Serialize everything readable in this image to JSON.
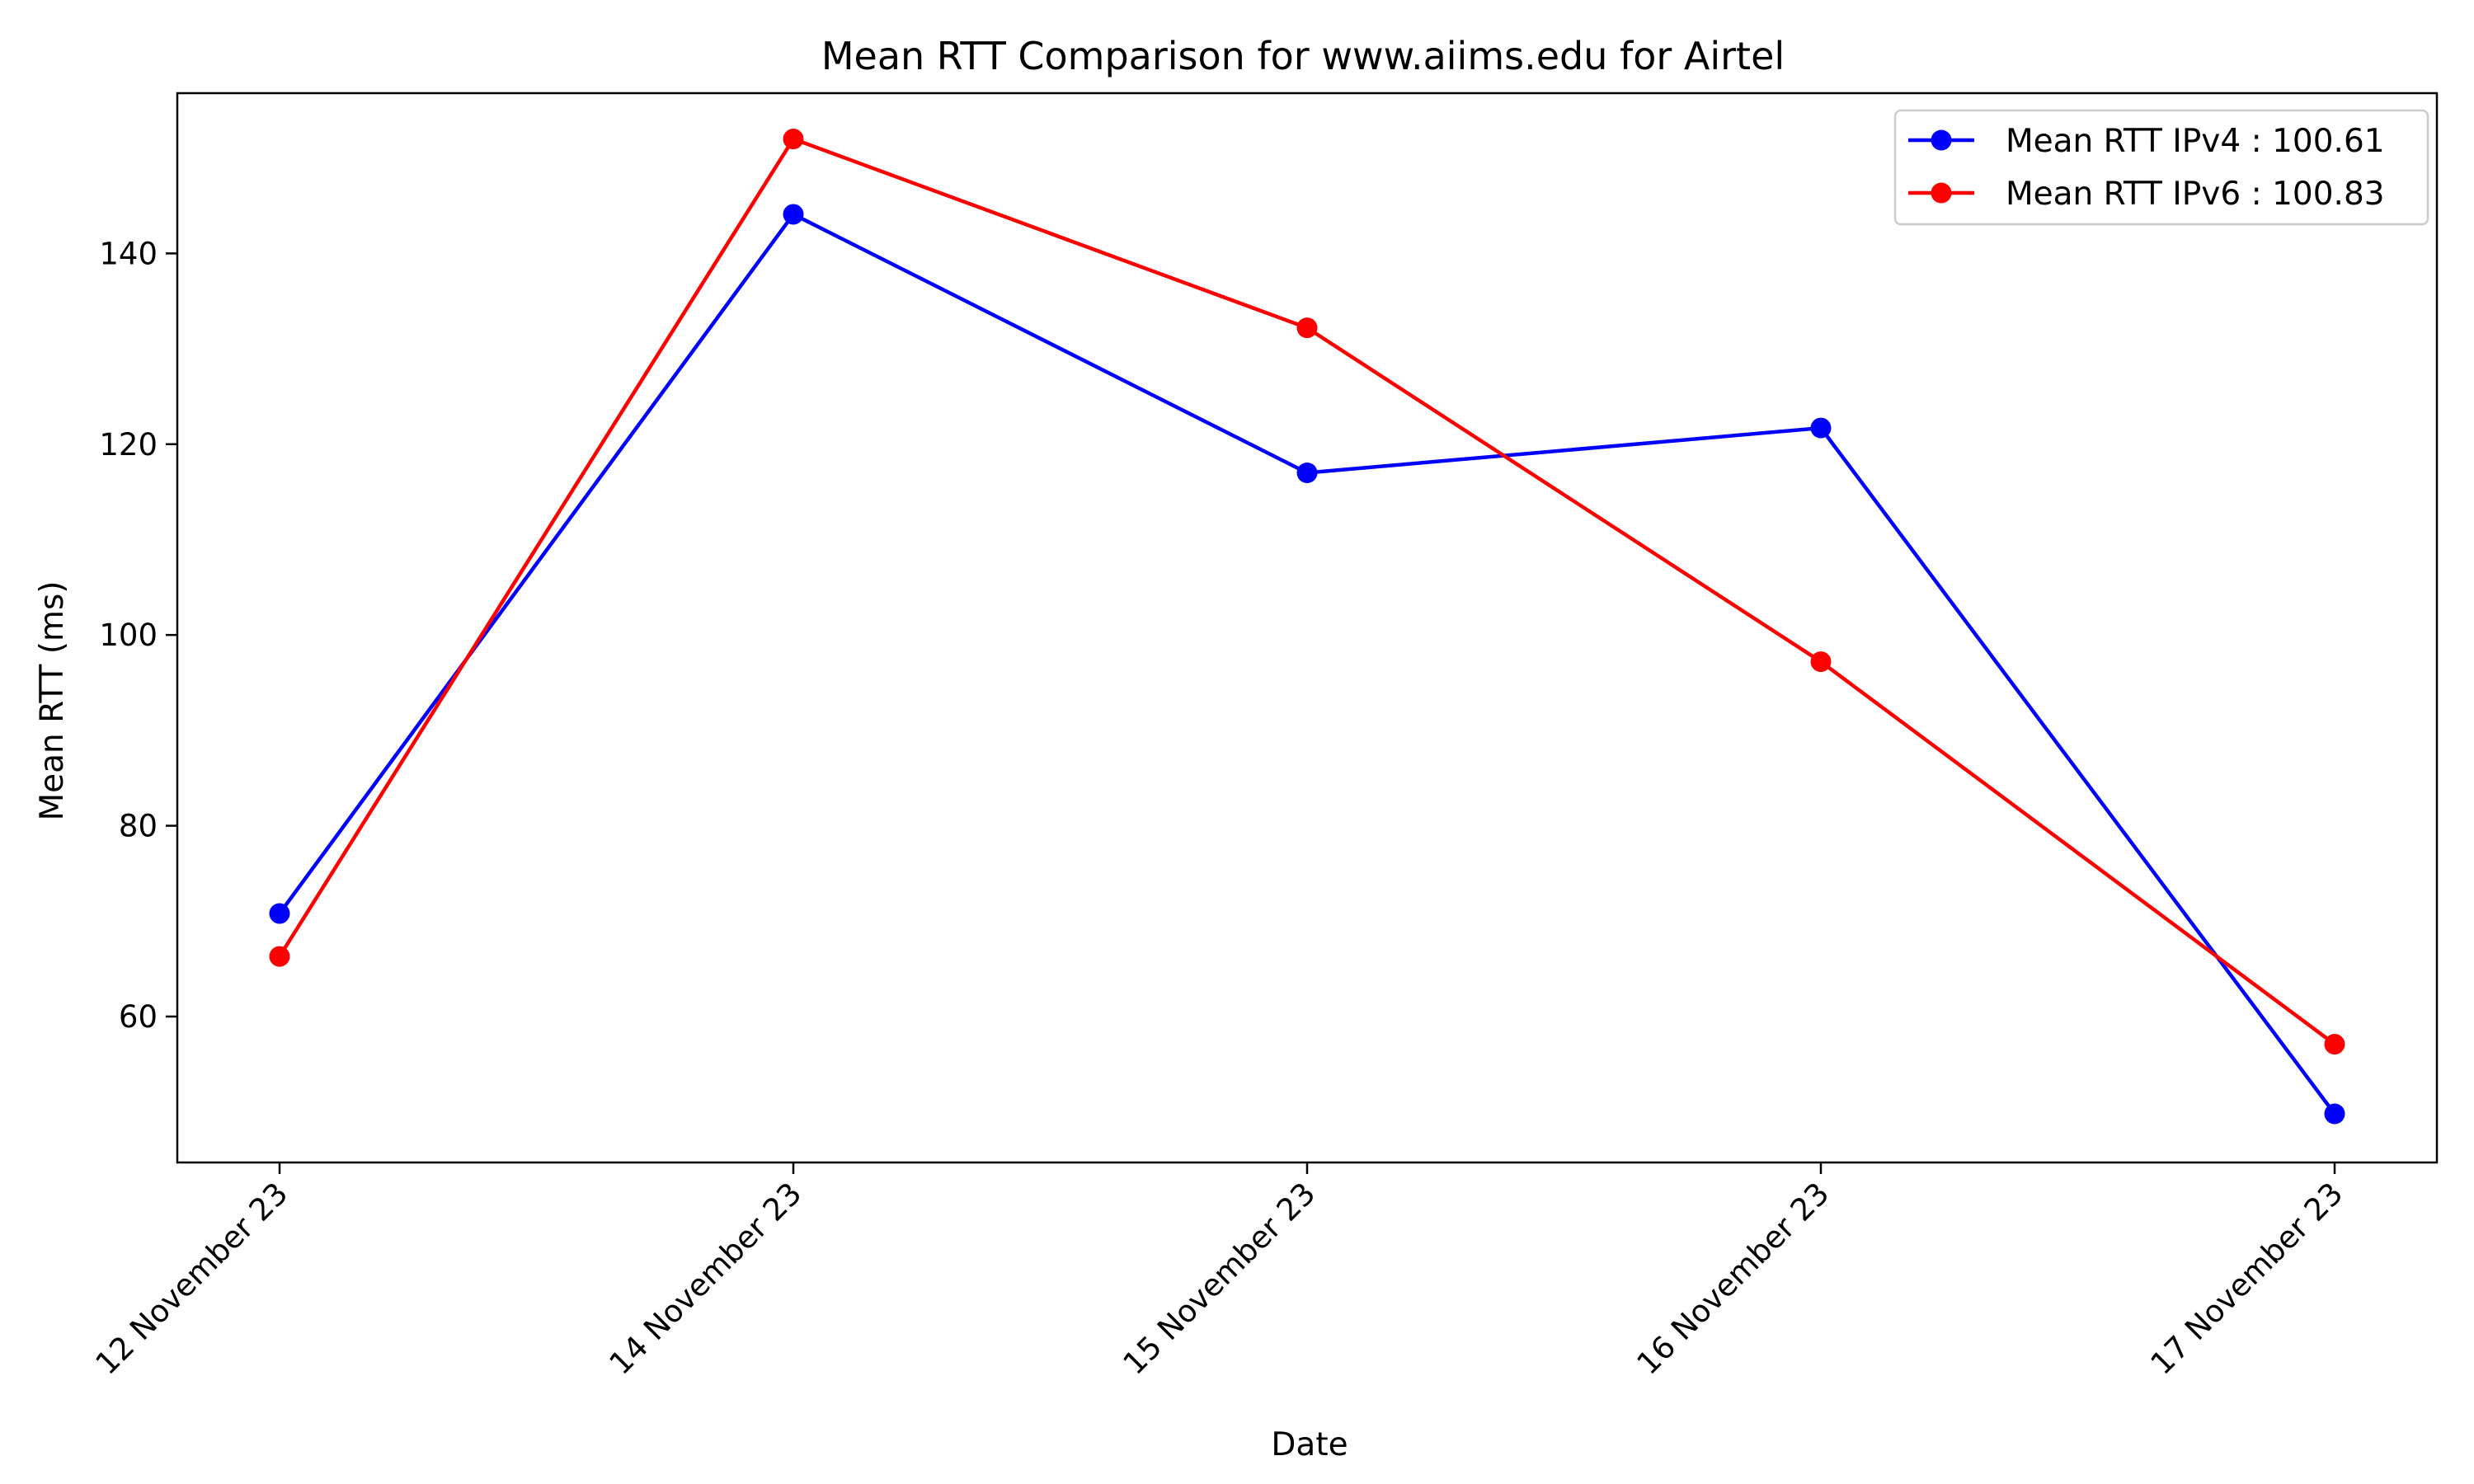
{
  "chart_data": {
    "type": "line",
    "title": "Mean RTT Comparison for www.aiims.edu for Airtel",
    "xlabel": "Date",
    "ylabel": "Mean RTT (ms)",
    "categories": [
      "12 November 23",
      "14 November 23",
      "15 November 23",
      "16 November 23",
      "17 November 23"
    ],
    "ylim": [
      44.7,
      156.8
    ],
    "yticks": [
      60,
      80,
      100,
      120,
      140
    ],
    "grid": false,
    "legend_position": "top-right",
    "series": [
      {
        "name": "Mean RTT IPv4 : 100.61",
        "color": "#0000ff",
        "values": [
          70.8,
          144.1,
          117.0,
          121.7,
          49.8
        ]
      },
      {
        "name": "Mean RTT IPv6 : 100.83",
        "color": "#ff0000",
        "values": [
          66.3,
          152.0,
          132.2,
          97.2,
          57.1
        ]
      }
    ]
  }
}
